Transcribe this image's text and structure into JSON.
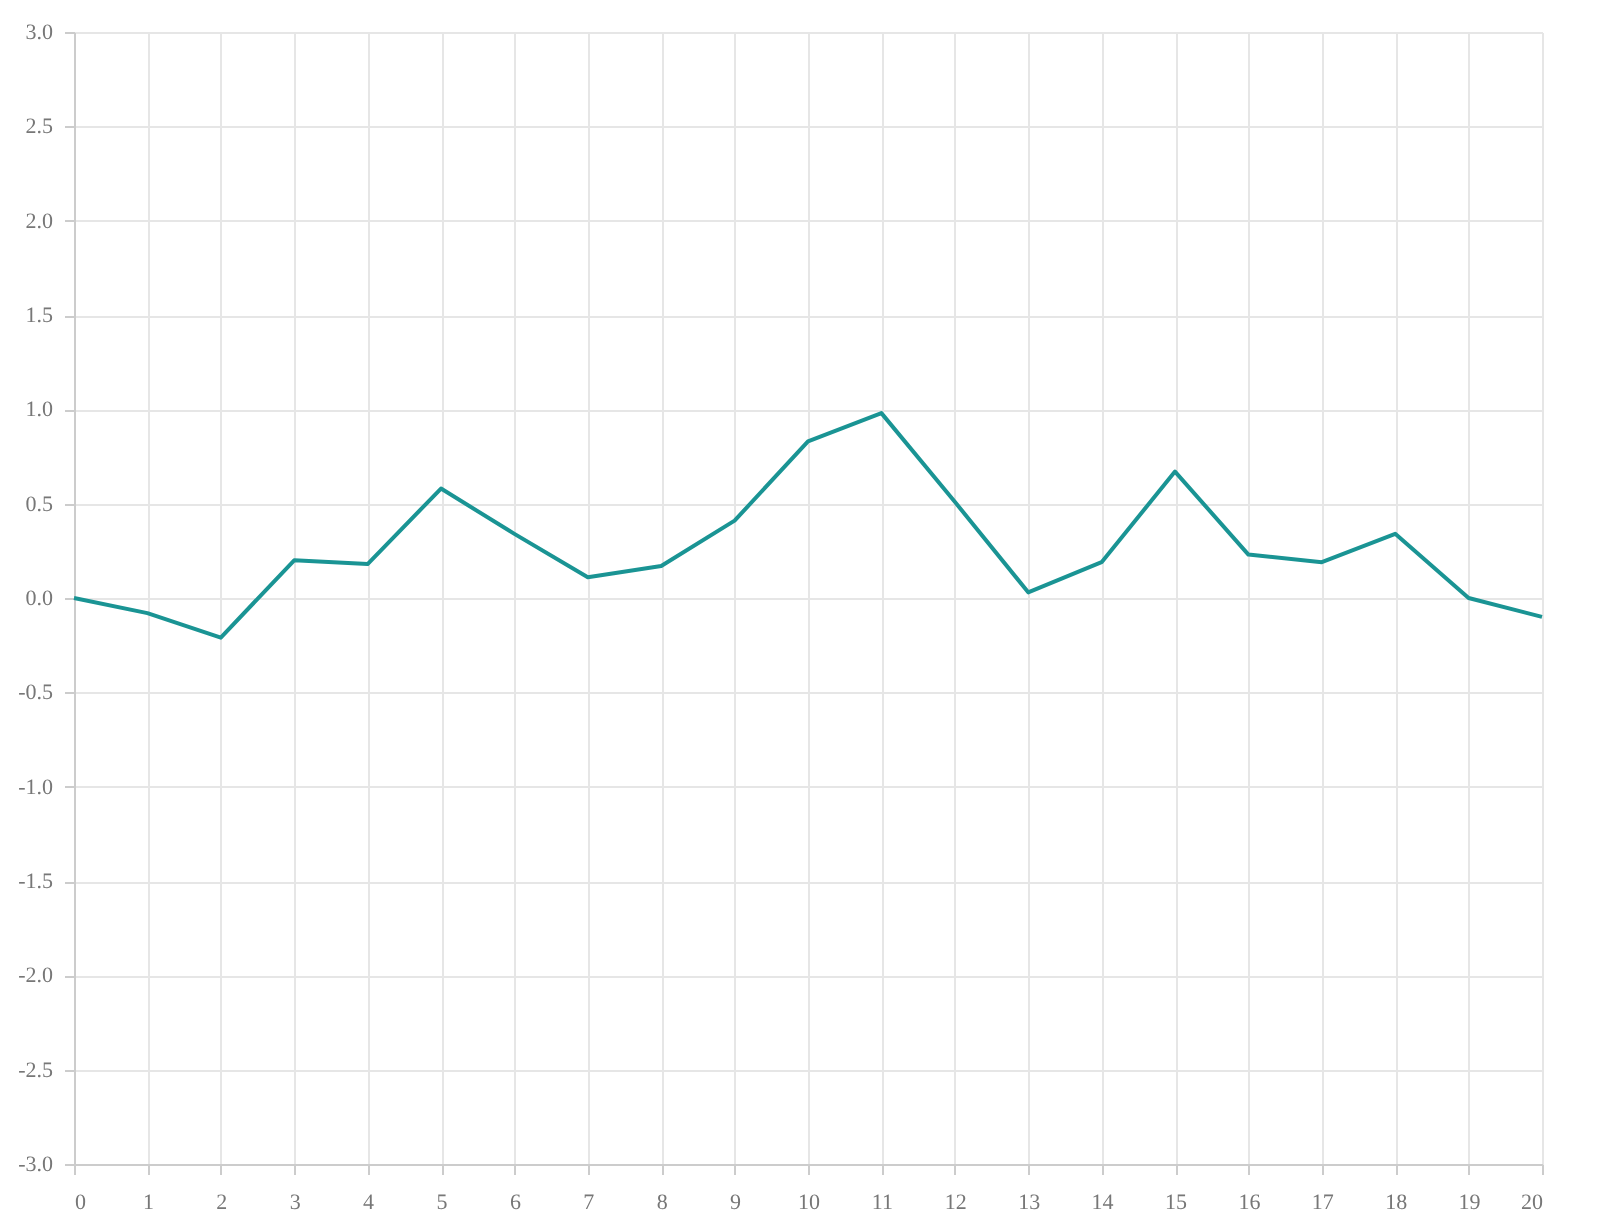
{
  "chart_data": {
    "type": "line",
    "x": [
      0,
      1,
      2,
      3,
      4,
      5,
      6,
      7,
      8,
      9,
      10,
      11,
      12,
      13,
      14,
      15,
      16,
      17,
      18,
      19,
      20
    ],
    "series": [
      {
        "color": "#1a9494",
        "values": [
          0,
          -0.08,
          -0.21,
          0.2,
          0.18,
          0.58,
          0.34,
          0.11,
          0.17,
          0.41,
          0.83,
          0.98,
          0.51,
          0.03,
          0.19,
          0.67,
          0.23,
          0.19,
          0.34,
          0,
          -0.1
        ]
      }
    ],
    "xlim": [
      0,
      20
    ],
    "xticks": [
      0,
      1,
      2,
      3,
      4,
      5,
      6,
      7,
      8,
      9,
      10,
      11,
      12,
      13,
      14,
      15,
      16,
      17,
      18,
      19,
      20
    ],
    "ylim": [
      -3,
      3
    ],
    "yticks": [
      {
        "value": -3,
        "label": "-3.0"
      },
      {
        "value": -2.5,
        "label": "-2.5"
      },
      {
        "value": -2,
        "label": "-2.0"
      },
      {
        "value": -1.5,
        "label": "-1.5"
      },
      {
        "value": -1,
        "label": "-1.0"
      },
      {
        "value": -0.5,
        "label": "-0.5"
      },
      {
        "value": 0,
        "label": "0.0"
      },
      {
        "value": 0.5,
        "label": "0.5"
      },
      {
        "value": 1,
        "label": "1.0"
      },
      {
        "value": 1.5,
        "label": "1.5"
      },
      {
        "value": 2,
        "label": "2.0"
      },
      {
        "value": 2.5,
        "label": "2.5"
      },
      {
        "value": 3,
        "label": "3.0"
      }
    ],
    "grid": true,
    "marker": "none",
    "line_style": "solid"
  }
}
